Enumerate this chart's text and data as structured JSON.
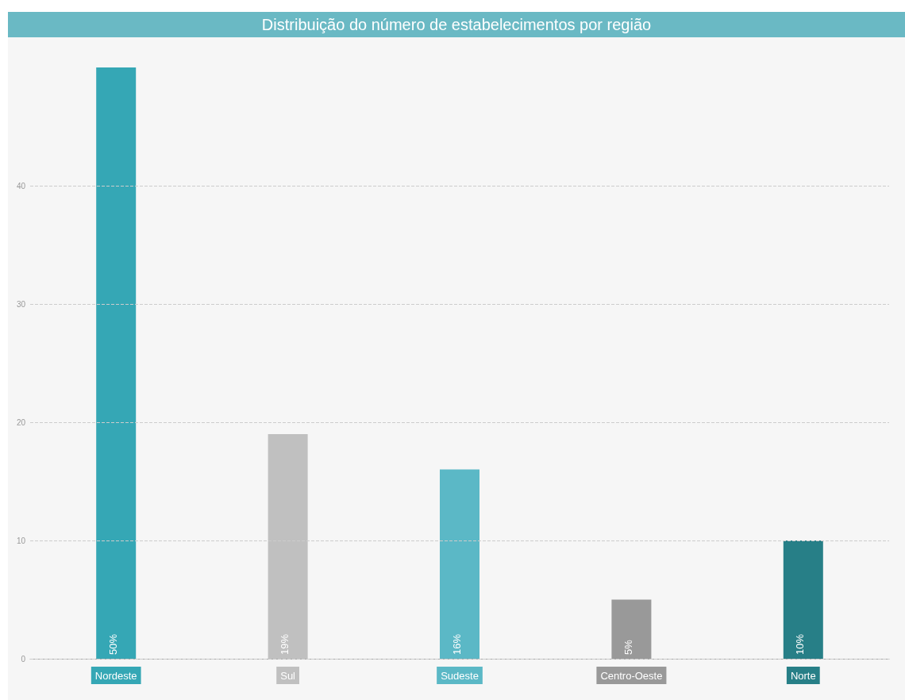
{
  "chart_data": {
    "type": "bar",
    "title": "Distribuição do número de estabelecimentos por região",
    "categories": [
      "Nordeste",
      "Sul",
      "Sudeste",
      "Centro-Oeste",
      "Norte"
    ],
    "values": [
      50,
      19,
      16,
      5,
      10
    ],
    "colors": [
      "#35a7b5",
      "#c0c0c0",
      "#5bb8c6",
      "#999999",
      "#277f87"
    ],
    "value_labels": [
      "50%",
      "19%",
      "16%",
      "5%",
      "10%"
    ],
    "ylim": [
      0,
      50
    ],
    "yticks": [
      0,
      10,
      20,
      30,
      40
    ],
    "grid": "y"
  }
}
